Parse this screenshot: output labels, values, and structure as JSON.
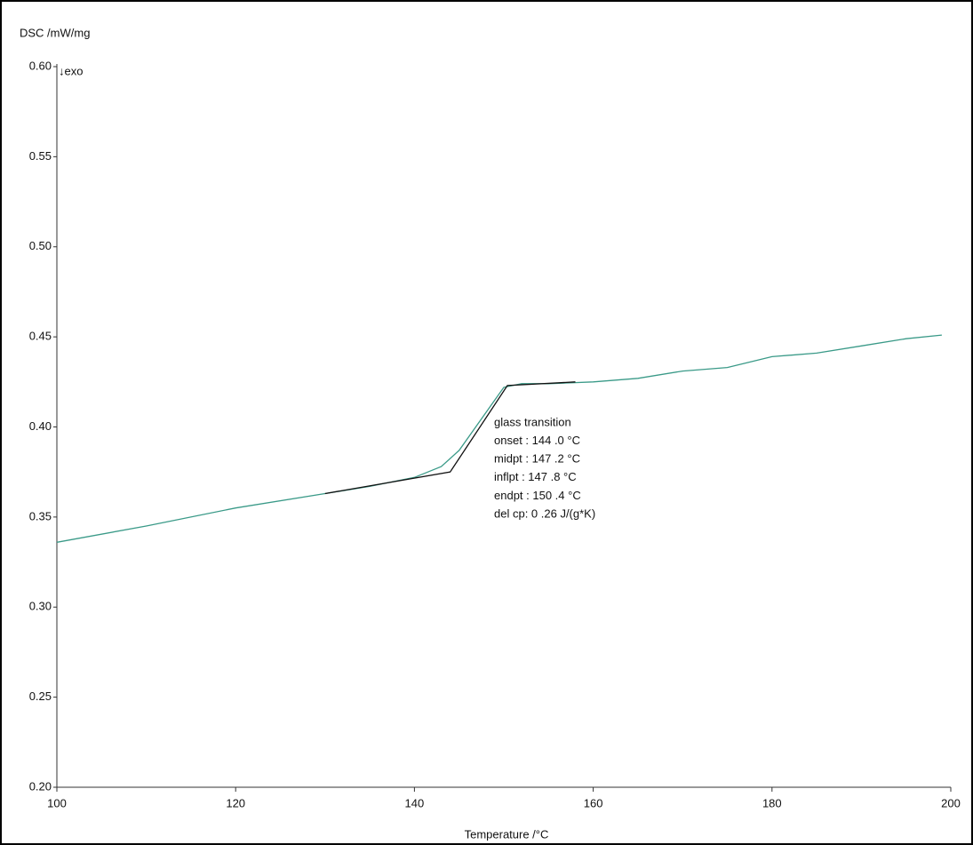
{
  "chart_data": {
    "type": "line",
    "y_label": "DSC /mW/mg",
    "x_label": "Temperature /°C",
    "direction_label": "↓exo",
    "annotations": [
      "glass transition",
      "onset  : 144 .0 °C",
      "midpt  : 147 .2 °C",
      "inflpt  : 147 .8 °C",
      "endpt  : 150 .4 °C",
      "del cp:   0 .26 J/(g*K)"
    ],
    "xlim": [
      100,
      200
    ],
    "xticks": [
      100,
      120,
      140,
      160,
      180,
      200
    ],
    "ylim": [
      0.2,
      0.6
    ],
    "yticks": [
      {
        "value": 0.2,
        "label": "0.20"
      },
      0.25,
      {
        "value": 0.3,
        "label": "0.30"
      },
      0.35,
      {
        "value": 0.4,
        "label": "0.40"
      },
      0.45,
      {
        "value": 0.5,
        "label": "0.50"
      },
      0.55,
      {
        "value": 0.6,
        "label": "0.60"
      }
    ],
    "grid": false,
    "series": [
      {
        "color": "#3a9a88",
        "x": [
          100,
          110,
          120,
          130,
          135,
          140,
          143,
          145,
          147,
          149,
          150,
          152,
          155,
          160,
          165,
          170,
          175,
          180,
          185,
          190,
          195,
          199
        ],
        "values": [
          0.336,
          0.345,
          0.355,
          0.363,
          0.367,
          0.372,
          0.378,
          0.387,
          0.401,
          0.415,
          0.422,
          0.424,
          0.424,
          0.425,
          0.427,
          0.431,
          0.433,
          0.439,
          0.441,
          0.445,
          0.449,
          0.451
        ]
      },
      {
        "color": "#111111",
        "x": [
          130,
          144,
          150.4,
          158
        ],
        "values": [
          0.363,
          0.375,
          0.423,
          0.425
        ]
      }
    ]
  }
}
